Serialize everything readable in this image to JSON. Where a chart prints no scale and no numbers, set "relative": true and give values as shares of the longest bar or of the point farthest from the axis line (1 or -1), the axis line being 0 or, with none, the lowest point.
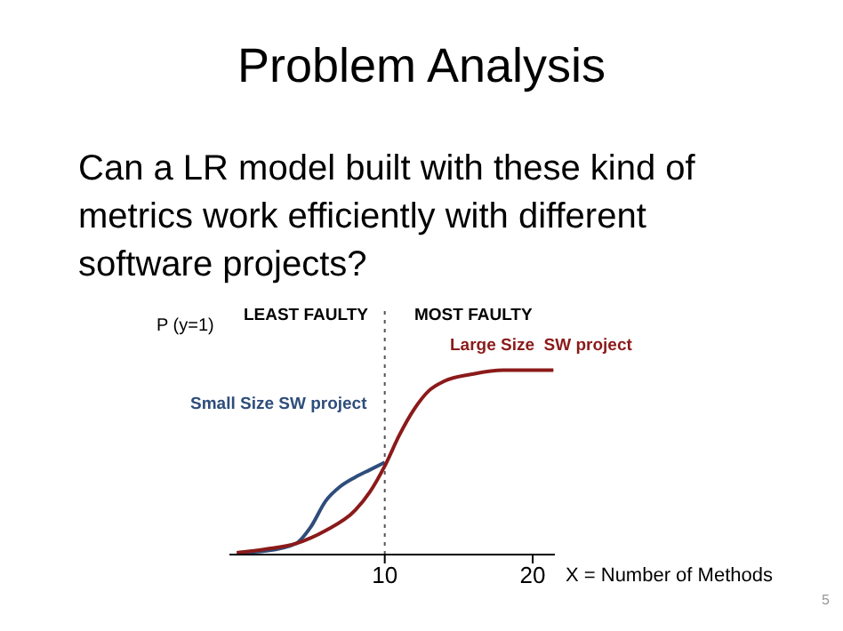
{
  "chart_data": {
    "type": "line",
    "title": "Problem Analysis",
    "subtitle": "Can a LR model built with these kind of metrics work efficiently with different software projects?",
    "xlabel": "X = Number of Methods",
    "ylabel": "P (y=1)",
    "relative": true,
    "xlim": [
      -0.5,
      21.5
    ],
    "xticks": [
      10,
      20
    ],
    "grid": false,
    "legend": false,
    "marker": "none",
    "line_style": "solid",
    "series": [
      {
        "name": "Small Size SW project",
        "color": "#2e4d7b",
        "x": [
          0,
          2,
          4,
          5,
          6,
          7,
          8,
          9,
          10
        ],
        "values": [
          0.01,
          0.02,
          0.06,
          0.15,
          0.29,
          0.37,
          0.42,
          0.46,
          0.5
        ]
      },
      {
        "name": "Large Size  SW project",
        "color": "#8b1a1a",
        "x": [
          0,
          2,
          4,
          6,
          8,
          9,
          10,
          11,
          12,
          13,
          14,
          16,
          18,
          21.4
        ],
        "values": [
          0.01,
          0.03,
          0.06,
          0.13,
          0.24,
          0.34,
          0.48,
          0.65,
          0.79,
          0.89,
          0.94,
          0.98,
          1,
          1
        ]
      }
    ],
    "ref_lines": [
      {
        "axis": "x",
        "value": 10,
        "color": "#555555",
        "line_style": "dotted"
      }
    ],
    "annotations": [
      "LEAST FAULTY",
      "MOST FAULTY",
      "5"
    ]
  }
}
